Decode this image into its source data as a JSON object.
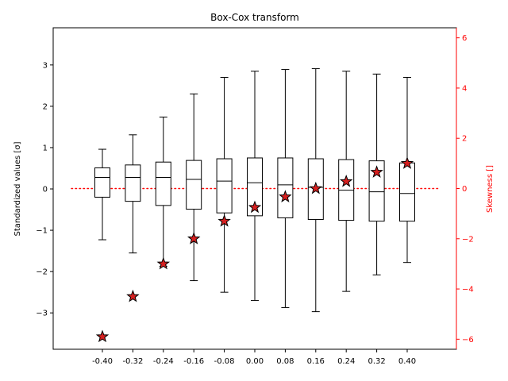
{
  "chart_data": {
    "type": "box",
    "title": "Box-Cox transform",
    "ylabel": "Standardized values [$\\sigma$]",
    "ylabel_display": "Standardized values [σ]",
    "y2label": "Skewness []",
    "categories": [
      "-0.40",
      "-0.32",
      "-0.24",
      "-0.16",
      "-0.08",
      "0.00",
      "0.08",
      "0.16",
      "0.24",
      "0.32",
      "0.40"
    ],
    "y_ticks": [
      "3",
      "2",
      "1",
      "0",
      "−1",
      "−2",
      "−3"
    ],
    "y2_ticks": [
      "6",
      "4",
      "2",
      "0",
      "−2",
      "−4",
      "−6"
    ],
    "ylim": [
      -3.88,
      3.9
    ],
    "y2lim": [
      -6.4,
      6.4
    ],
    "boxes": [
      {
        "lambda": -0.4,
        "whisker_low": -1.23,
        "q1": -0.2,
        "median": 0.28,
        "q3": 0.51,
        "whisker_high": 0.96
      },
      {
        "lambda": -0.32,
        "whisker_low": -1.55,
        "q1": -0.3,
        "median": 0.28,
        "q3": 0.58,
        "whisker_high": 1.31
      },
      {
        "lambda": -0.24,
        "whisker_low": -1.87,
        "q1": -0.4,
        "median": 0.28,
        "q3": 0.65,
        "whisker_high": 1.74
      },
      {
        "lambda": -0.16,
        "whisker_low": -2.22,
        "q1": -0.49,
        "median": 0.23,
        "q3": 0.69,
        "whisker_high": 2.3
      },
      {
        "lambda": -0.08,
        "whisker_low": -2.5,
        "q1": -0.58,
        "median": 0.19,
        "q3": 0.73,
        "whisker_high": 2.7
      },
      {
        "lambda": 0.0,
        "whisker_low": -2.7,
        "q1": -0.65,
        "median": 0.15,
        "q3": 0.75,
        "whisker_high": 2.85
      },
      {
        "lambda": 0.08,
        "whisker_low": -2.87,
        "q1": -0.7,
        "median": 0.1,
        "q3": 0.75,
        "whisker_high": 2.89
      },
      {
        "lambda": 0.16,
        "whisker_low": -2.97,
        "q1": -0.74,
        "median": 0.04,
        "q3": 0.73,
        "whisker_high": 2.91
      },
      {
        "lambda": 0.24,
        "whisker_low": -2.48,
        "q1": -0.76,
        "median": -0.03,
        "q3": 0.71,
        "whisker_high": 2.85
      },
      {
        "lambda": 0.32,
        "whisker_low": -2.08,
        "q1": -0.78,
        "median": -0.07,
        "q3": 0.68,
        "whisker_high": 2.78
      },
      {
        "lambda": 0.4,
        "whisker_low": -1.78,
        "q1": -0.78,
        "median": -0.11,
        "q3": 0.63,
        "whisker_high": 2.7
      }
    ],
    "skewness": [
      -5.9,
      -4.3,
      -3.0,
      -2.0,
      -1.3,
      -0.75,
      -0.33,
      0.0,
      0.28,
      0.65,
      1.0
    ],
    "zero_line": {
      "value": 0,
      "style": "dotted",
      "color": "#ff0000"
    },
    "colors": {
      "box": "#000000",
      "marker_fill": "#d62020",
      "marker_edge": "#000000",
      "right_axis": "#ff0000"
    },
    "grid": false
  }
}
